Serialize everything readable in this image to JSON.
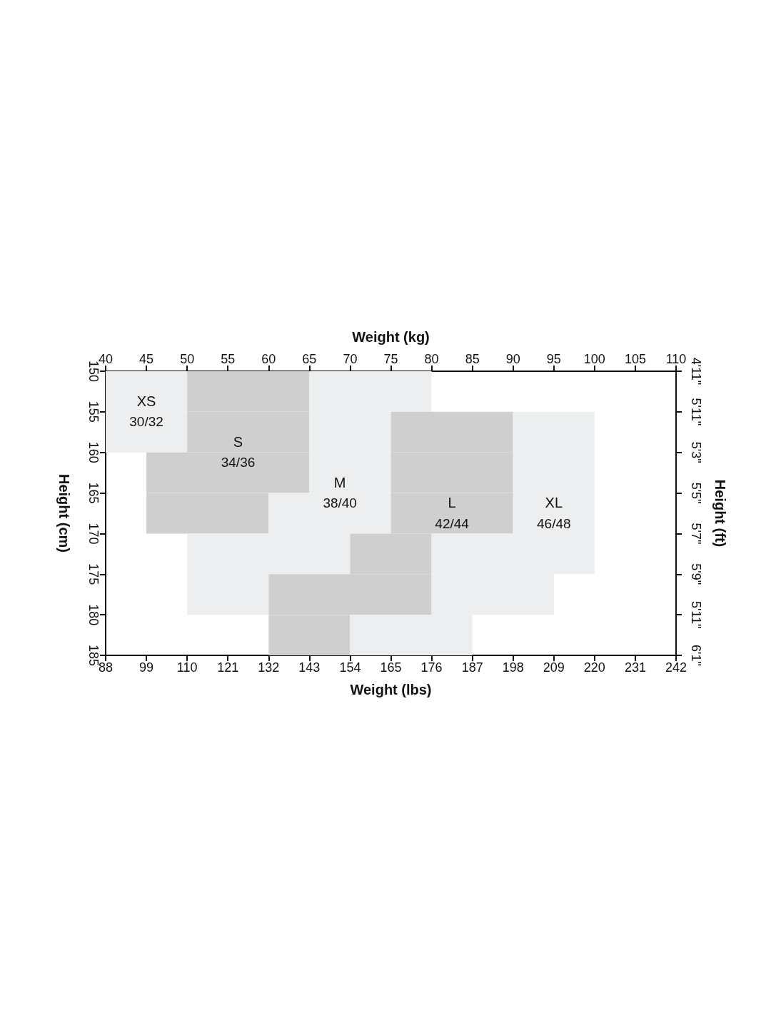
{
  "chart_data": {
    "type": "bar",
    "orientation": "horizontal",
    "xlabel": "Weight (lbs)",
    "x2label": "Weight (kg)",
    "ylabel": "Height (cm)",
    "y2label": "Height (ft)",
    "x": [
      152.5,
      157.5,
      162.5,
      167.5,
      172.5,
      177.5,
      182.5
    ],
    "series": [
      {
        "name": "XS",
        "color": "#eceef0",
        "axis": "x2",
        "base": [
          40,
          40,
          null,
          null,
          null,
          null,
          null
        ],
        "values": [
          10,
          10,
          null,
          null,
          null,
          null,
          null
        ]
      },
      {
        "name": "S",
        "color": "#cfcfcf",
        "axis": "x2",
        "base": [
          50,
          50,
          45,
          45,
          null,
          null,
          null
        ],
        "values": [
          15,
          15,
          20,
          15,
          null,
          null,
          null
        ]
      },
      {
        "name": "M",
        "color": "#eceef0",
        "axis": "x2",
        "base": [
          65,
          65,
          65,
          60,
          50,
          50,
          null
        ],
        "values": [
          15,
          10,
          10,
          15,
          20,
          10,
          null
        ]
      },
      {
        "name": "L",
        "color": "#cfcfcf",
        "axis": "x2",
        "base": [
          null,
          75,
          75,
          75,
          70,
          60,
          60
        ],
        "values": [
          null,
          15,
          15,
          15,
          10,
          20,
          10
        ]
      },
      {
        "name": "XL",
        "color": "#eceef0",
        "axis": "x2",
        "base": [
          null,
          90,
          90,
          90,
          80,
          80,
          70
        ],
        "values": [
          null,
          10,
          10,
          10,
          20,
          15,
          15
        ]
      }
    ],
    "xlim": [
      88,
      242
    ],
    "xticks": [
      88,
      99,
      110,
      121,
      132,
      143,
      154,
      165,
      176,
      187,
      198,
      209,
      220,
      231,
      242
    ],
    "x2lim": [
      40,
      110
    ],
    "x2ticks": [
      40,
      45,
      50,
      55,
      60,
      65,
      70,
      75,
      80,
      85,
      90,
      95,
      100,
      105,
      110
    ],
    "ylim": [
      185,
      150
    ],
    "yticks": [
      150,
      155,
      160,
      165,
      170,
      175,
      180,
      185
    ],
    "annotations": [
      "30/32",
      "34/36",
      "38/40",
      "42/44",
      "46/48",
      "4'11\"",
      "5'11\"",
      "5'3\"",
      "5'5\"",
      "5'7\"",
      "5'9\"",
      "5'11\"",
      "6'1\""
    ],
    "grid": false,
    "legend": false
  }
}
